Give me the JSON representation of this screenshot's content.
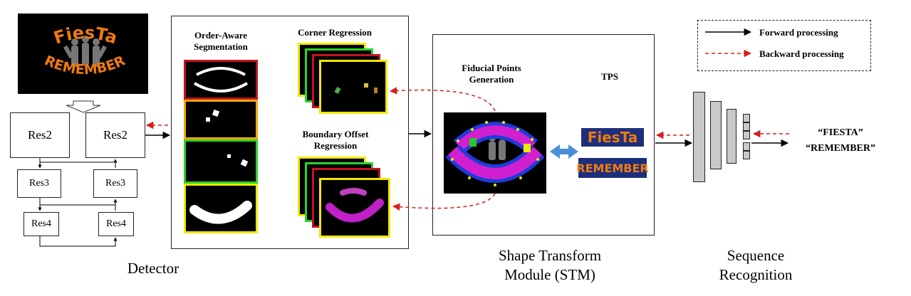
{
  "detector": {
    "blocks": [
      "Res2",
      "Res2",
      "Res3",
      "Res3",
      "Res4",
      "Res4"
    ],
    "caption": "Detector"
  },
  "input_image": {
    "line1": "FiesTa",
    "line2": "REMEMBER"
  },
  "segmentation": {
    "title": "Order-Aware Segmentation",
    "colors": [
      "#c0141e",
      "#f2a900",
      "#2bd32b",
      "#f2e800"
    ]
  },
  "corner_regression": {
    "title": "Corner Regression"
  },
  "boundary_regression": {
    "title": "Boundary Offset Regression"
  },
  "stm": {
    "fiducial_title": "Fiducial Points Generation",
    "tps_title": "TPS",
    "caption": "Shape Transform Module (STM)",
    "crop1": "FiesTa",
    "crop2": "REMEMBER"
  },
  "legend": {
    "forward": "Forward processing",
    "backward": "Backward processing"
  },
  "recognition": {
    "caption": "Sequence Recognition",
    "output1": "“FIESTA”",
    "output2": "“REMEMBER”"
  },
  "colors": {
    "forward": "#000000",
    "backward": "#d42020",
    "double_arrow": "#4a90d9",
    "magenta": "#d020d0"
  }
}
